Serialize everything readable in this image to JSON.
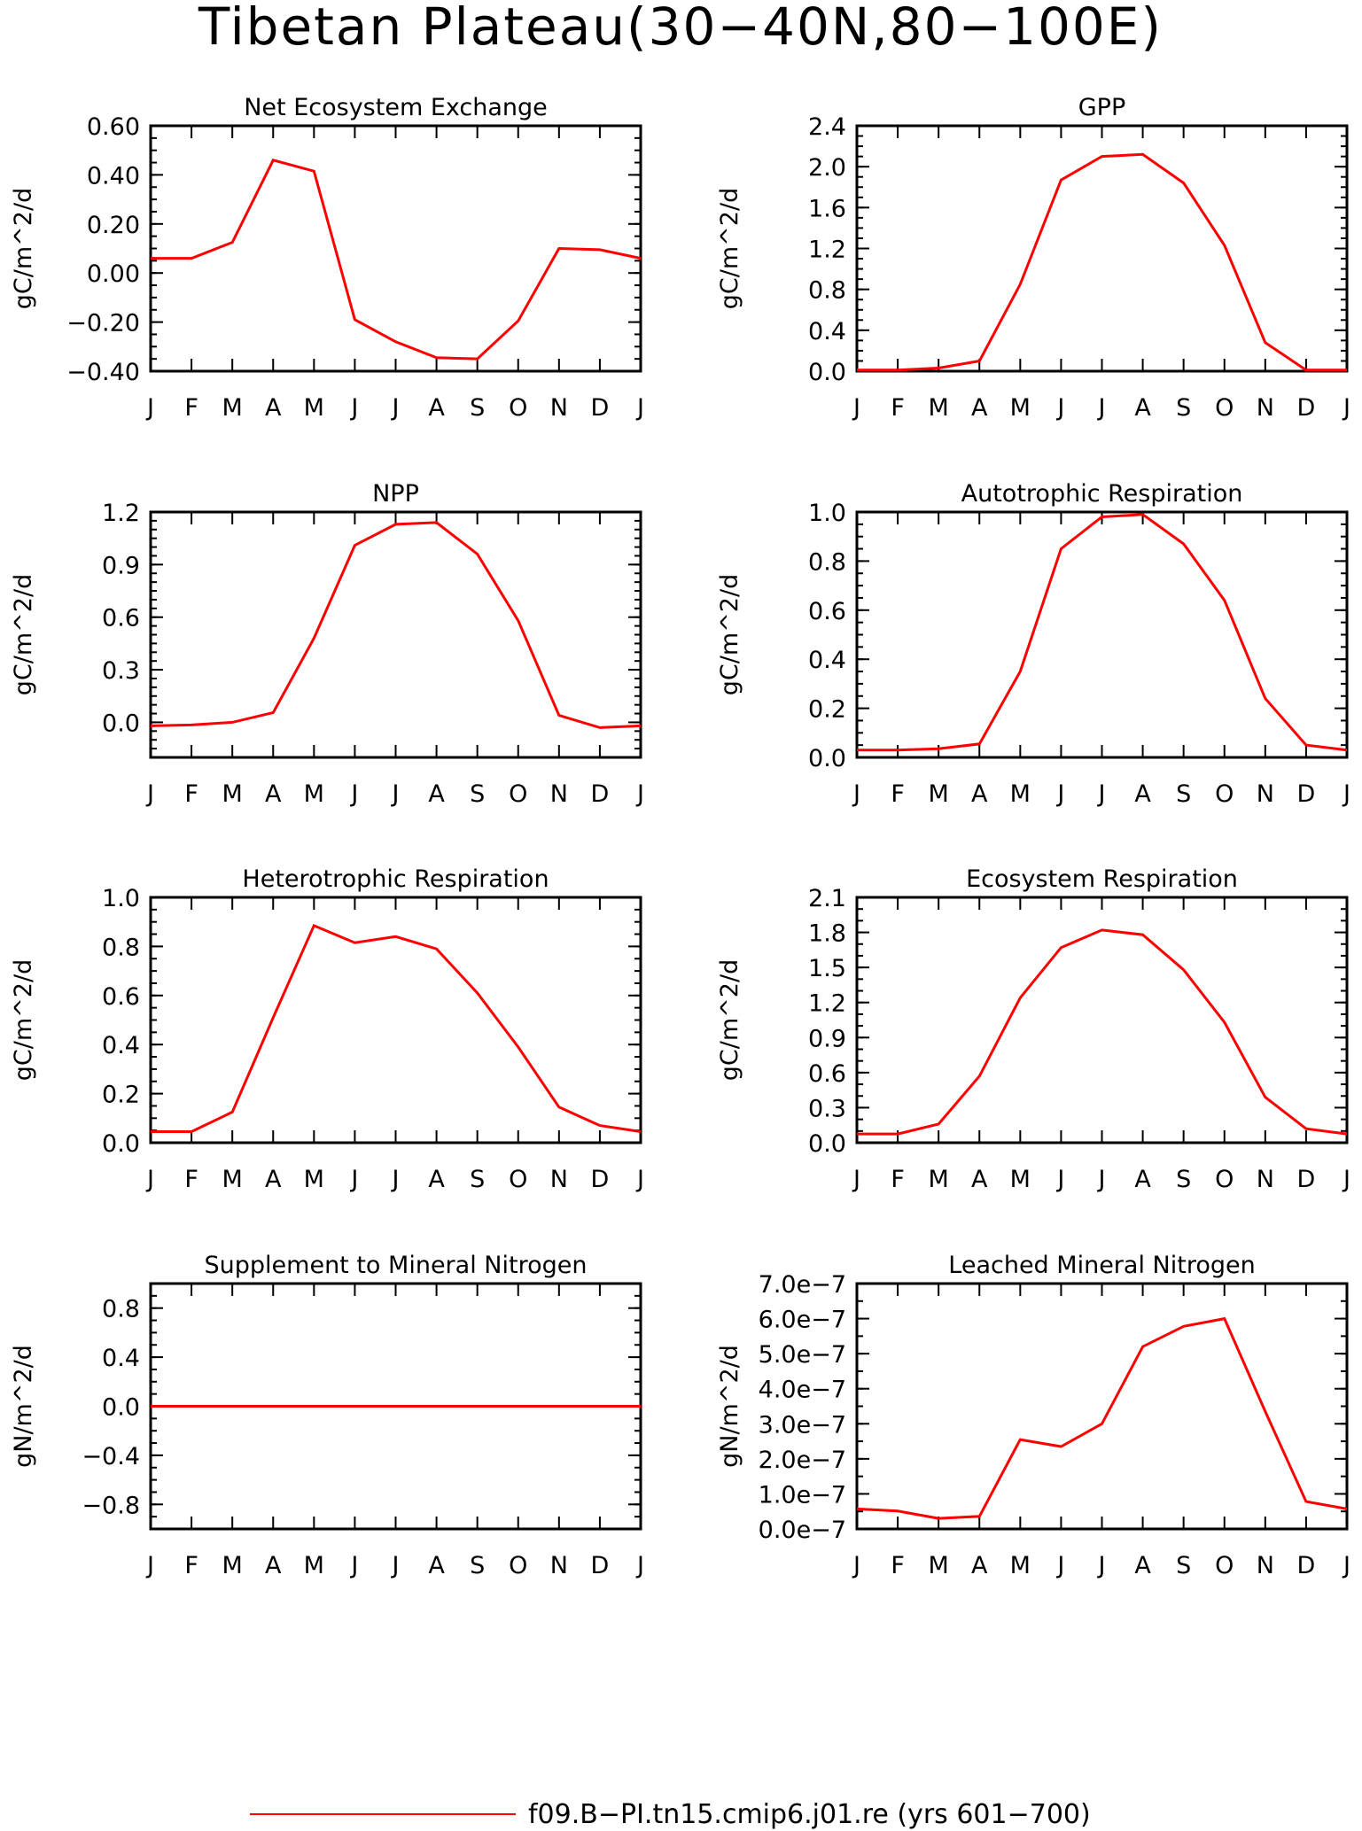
{
  "figure": {
    "title": "Tibetan Plateau(30−40N,80−100E)",
    "legend_label": "f09.B−PI.tn15.cmip6.j01.re (yrs 601−700)",
    "line_color": "#ff0000"
  },
  "chart_data": [
    {
      "type": "line",
      "title": "Net Ecosystem Exchange",
      "ylabel": "gC/m^2/d",
      "categories": [
        "J",
        "F",
        "M",
        "A",
        "M",
        "J",
        "J",
        "A",
        "S",
        "O",
        "N",
        "D",
        "J"
      ],
      "ylim": [
        -0.4,
        0.6
      ],
      "yticks": [
        -0.4,
        -0.2,
        0.0,
        0.2,
        0.4,
        0.6
      ],
      "ytick_labels": [
        "−0.40",
        "−0.20",
        "0.00",
        "0.20",
        "0.40",
        "0.60"
      ],
      "yminor": 0.05,
      "series": [
        {
          "values": [
            0.06,
            0.06,
            0.125,
            0.46,
            0.415,
            -0.19,
            -0.28,
            -0.345,
            -0.35,
            -0.195,
            0.1,
            0.095,
            0.06
          ]
        }
      ]
    },
    {
      "type": "line",
      "title": "GPP",
      "ylabel": "gC/m^2/d",
      "categories": [
        "J",
        "F",
        "M",
        "A",
        "M",
        "J",
        "J",
        "A",
        "S",
        "O",
        "N",
        "D",
        "J"
      ],
      "ylim": [
        0,
        2.4
      ],
      "yticks": [
        0,
        0.4,
        0.8,
        1.2,
        1.6,
        2.0,
        2.4
      ],
      "ytick_labels": [
        "0.0",
        "0.4",
        "0.8",
        "1.2",
        "1.6",
        "2.0",
        "2.4"
      ],
      "yminor": 0.1,
      "series": [
        {
          "values": [
            0.01,
            0.01,
            0.03,
            0.1,
            0.85,
            1.87,
            2.1,
            2.12,
            1.84,
            1.23,
            0.28,
            0.01,
            0.01
          ]
        }
      ]
    },
    {
      "type": "line",
      "title": "NPP",
      "ylabel": "gC/m^2/d",
      "categories": [
        "J",
        "F",
        "M",
        "A",
        "M",
        "J",
        "J",
        "A",
        "S",
        "O",
        "N",
        "D",
        "J"
      ],
      "ylim": [
        -0.2,
        1.2
      ],
      "yticks": [
        0.0,
        0.3,
        0.6,
        0.9,
        1.2
      ],
      "ytick_labels": [
        "0.0",
        "0.3",
        "0.6",
        "0.9",
        "1.2"
      ],
      "yminor": 0.05,
      "series": [
        {
          "values": [
            -0.02,
            -0.015,
            0.0,
            0.055,
            0.48,
            1.01,
            1.13,
            1.14,
            0.96,
            0.58,
            0.04,
            -0.03,
            -0.02
          ]
        }
      ]
    },
    {
      "type": "line",
      "title": "Autotrophic Respiration",
      "ylabel": "gC/m^2/d",
      "categories": [
        "J",
        "F",
        "M",
        "A",
        "M",
        "J",
        "J",
        "A",
        "S",
        "O",
        "N",
        "D",
        "J"
      ],
      "ylim": [
        0,
        1.0
      ],
      "yticks": [
        0.0,
        0.2,
        0.4,
        0.6,
        0.8,
        1.0
      ],
      "ytick_labels": [
        "0.0",
        "0.2",
        "0.4",
        "0.6",
        "0.8",
        "1.0"
      ],
      "yminor": 0.05,
      "series": [
        {
          "values": [
            0.03,
            0.03,
            0.035,
            0.055,
            0.35,
            0.85,
            0.98,
            0.99,
            0.87,
            0.64,
            0.24,
            0.05,
            0.03
          ]
        }
      ]
    },
    {
      "type": "line",
      "title": "Heterotrophic Respiration",
      "ylabel": "gC/m^2/d",
      "categories": [
        "J",
        "F",
        "M",
        "A",
        "M",
        "J",
        "J",
        "A",
        "S",
        "O",
        "N",
        "D",
        "J"
      ],
      "ylim": [
        0,
        1.0
      ],
      "yticks": [
        0.0,
        0.2,
        0.4,
        0.6,
        0.8,
        1.0
      ],
      "ytick_labels": [
        "0.0",
        "0.2",
        "0.4",
        "0.6",
        "0.8",
        "1.0"
      ],
      "yminor": 0.05,
      "series": [
        {
          "values": [
            0.045,
            0.045,
            0.125,
            0.51,
            0.885,
            0.815,
            0.84,
            0.79,
            0.61,
            0.39,
            0.145,
            0.07,
            0.045
          ]
        }
      ]
    },
    {
      "type": "line",
      "title": "Ecosystem Respiration",
      "ylabel": "gC/m^2/d",
      "categories": [
        "J",
        "F",
        "M",
        "A",
        "M",
        "J",
        "J",
        "A",
        "S",
        "O",
        "N",
        "D",
        "J"
      ],
      "ylim": [
        0,
        2.1
      ],
      "yticks": [
        0.0,
        0.3,
        0.6,
        0.9,
        1.2,
        1.5,
        1.8,
        2.1
      ],
      "ytick_labels": [
        "0.0",
        "0.3",
        "0.6",
        "0.9",
        "1.2",
        "1.5",
        "1.8",
        "2.1"
      ],
      "yminor": 0.1,
      "series": [
        {
          "values": [
            0.075,
            0.075,
            0.16,
            0.57,
            1.24,
            1.67,
            1.82,
            1.78,
            1.48,
            1.03,
            0.39,
            0.12,
            0.075
          ]
        }
      ]
    },
    {
      "type": "line",
      "title": "Supplement to Mineral Nitrogen",
      "ylabel": "gN/m^2/d",
      "categories": [
        "J",
        "F",
        "M",
        "A",
        "M",
        "J",
        "J",
        "A",
        "S",
        "O",
        "N",
        "D",
        "J"
      ],
      "ylim": [
        -1.0,
        1.0
      ],
      "yticks": [
        -0.8,
        -0.4,
        0.0,
        0.4,
        0.8
      ],
      "ytick_labels": [
        "−0.8",
        "−0.4",
        "0.0",
        "0.4",
        "0.8"
      ],
      "yminor": 0.1,
      "series": [
        {
          "values": [
            0,
            0,
            0,
            0,
            0,
            0,
            0,
            0,
            0,
            0,
            0,
            0,
            0
          ]
        }
      ]
    },
    {
      "type": "line",
      "title": "Leached Mineral Nitrogen",
      "ylabel": "gN/m^2/d",
      "categories": [
        "J",
        "F",
        "M",
        "A",
        "M",
        "J",
        "J",
        "A",
        "S",
        "O",
        "N",
        "D",
        "J"
      ],
      "ylim": [
        0,
        7e-07
      ],
      "yticks": [
        0,
        1e-07,
        2e-07,
        3e-07,
        4e-07,
        5e-07,
        6e-07,
        7e-07
      ],
      "ytick_labels": [
        "0.0e−7",
        "1.0e−7",
        "2.0e−7",
        "3.0e−7",
        "4.0e−7",
        "5.0e−7",
        "6.0e−7",
        "7.0e−7"
      ],
      "yminor": 5e-08,
      "series": [
        {
          "values": [
            5.7e-08,
            5.1e-08,
            3e-08,
            3.6e-08,
            2.55e-07,
            2.35e-07,
            3e-07,
            5.2e-07,
            5.78e-07,
            6e-07,
            3.35e-07,
            7.8e-08,
            5.7e-08
          ]
        }
      ]
    }
  ]
}
